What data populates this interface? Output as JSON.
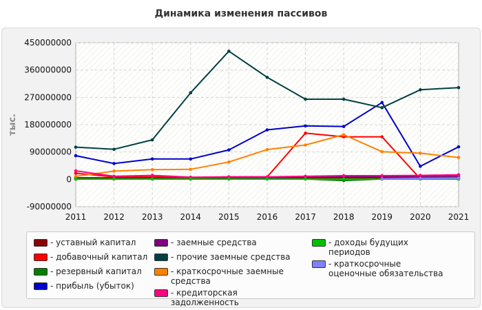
{
  "chart_data": {
    "type": "line",
    "title": "Динамика изменения пассивов",
    "ylabel": "тыс.",
    "x": [
      "2011",
      "2012",
      "2013",
      "2014",
      "2015",
      "2016",
      "2017",
      "2018",
      "2019",
      "2020",
      "2021"
    ],
    "y_ticks": [
      "450000000",
      "360000000",
      "270000000",
      "180000000",
      "90000000",
      "0",
      "-90000000"
    ],
    "ylim": [
      -90000000,
      450000000
    ],
    "grid": true,
    "legend_position": "bottom",
    "series": [
      {
        "name": "- уставный капитал",
        "color": "#8b0000",
        "values": [
          5000000,
          5000000,
          5000000,
          5000000,
          5000000,
          5000000,
          5000000,
          5000000,
          5000000,
          5000000,
          5000000
        ]
      },
      {
        "name": "- добавочный капитал",
        "color": "#ff0000",
        "values": [
          20000000,
          8000000,
          8000000,
          6000000,
          8000000,
          8000000,
          152000000,
          140000000,
          140000000,
          2000000,
          2000000
        ]
      },
      {
        "name": "- резервный капитал",
        "color": "#008000",
        "values": [
          1000000,
          1000000,
          1000000,
          1000000,
          1000000,
          1000000,
          1000000,
          -4000000,
          1000000,
          1000000,
          1000000
        ]
      },
      {
        "name": "- прибыль (убыток)",
        "color": "#0000cc",
        "values": [
          78000000,
          52000000,
          67000000,
          67000000,
          97000000,
          163000000,
          176000000,
          174000000,
          253000000,
          43000000,
          107000000
        ]
      },
      {
        "name": "- заемные средства",
        "color": "#800080",
        "values": [
          1000000,
          1000000,
          1000000,
          1000000,
          2000000,
          3000000,
          8000000,
          9000000,
          9000000,
          10000000,
          10000000
        ]
      },
      {
        "name": "- прочие заемные средства",
        "color": "#004040",
        "values": [
          106000000,
          99000000,
          130000000,
          285000000,
          422000000,
          336000000,
          264000000,
          264000000,
          236000000,
          295000000,
          302000000
        ]
      },
      {
        "name": "- краткосрочные заемные средства",
        "color": "#ff8000",
        "values": [
          10000000,
          27000000,
          32000000,
          33000000,
          57000000,
          98000000,
          113000000,
          147000000,
          91000000,
          86000000,
          72000000
        ]
      },
      {
        "name": "- кредиторская задолженность",
        "color": "#ff0080",
        "values": [
          28000000,
          10000000,
          13000000,
          7000000,
          8000000,
          8000000,
          10000000,
          12000000,
          12000000,
          13000000,
          15000000
        ]
      },
      {
        "name": "- доходы будущих периодов",
        "color": "#00c000",
        "values": [
          1000000,
          1000000,
          1000000,
          1000000,
          1000000,
          1000000,
          1000000,
          1000000,
          1000000,
          1000000,
          1000000
        ]
      },
      {
        "name": "- краткосрочные оценочные обязательства",
        "color": "#8080ff",
        "values": [
          null,
          null,
          null,
          null,
          null,
          null,
          null,
          null,
          2000000,
          3000000,
          4000000
        ]
      }
    ],
    "legend_columns": [
      [
        0,
        1,
        2,
        3
      ],
      [
        4,
        5,
        6,
        7
      ],
      [
        8,
        9
      ]
    ]
  }
}
